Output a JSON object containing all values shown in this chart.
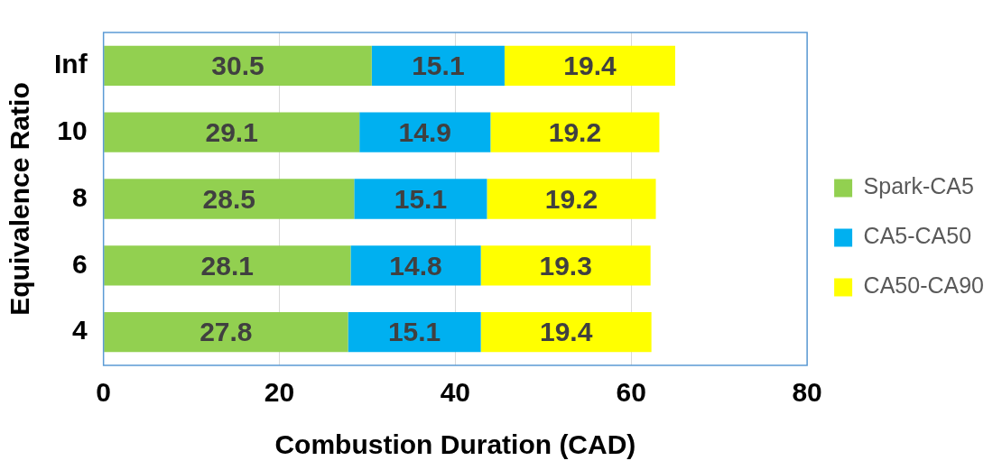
{
  "chart_data": {
    "type": "bar",
    "orientation": "horizontal",
    "stacked": true,
    "xlabel": "Combustion Duration (CAD)",
    "ylabel": "Equivalence Ratio",
    "categories": [
      "Inf",
      "10",
      "8",
      "6",
      "4"
    ],
    "series": [
      {
        "name": "Spark-CA5",
        "color": "#92d050",
        "values": [
          30.5,
          29.1,
          28.5,
          28.1,
          27.8
        ]
      },
      {
        "name": "CA5-CA50",
        "color": "#00b0f0",
        "values": [
          15.1,
          14.9,
          15.1,
          14.8,
          15.1
        ]
      },
      {
        "name": "CA50-CA90",
        "color": "#ffff00",
        "values": [
          19.4,
          19.2,
          19.2,
          19.3,
          19.4
        ]
      }
    ],
    "xlim": [
      0,
      80
    ],
    "xticks": [
      0,
      20,
      40,
      60,
      80
    ],
    "grid": "x",
    "legend": "right",
    "data_labels": true
  }
}
